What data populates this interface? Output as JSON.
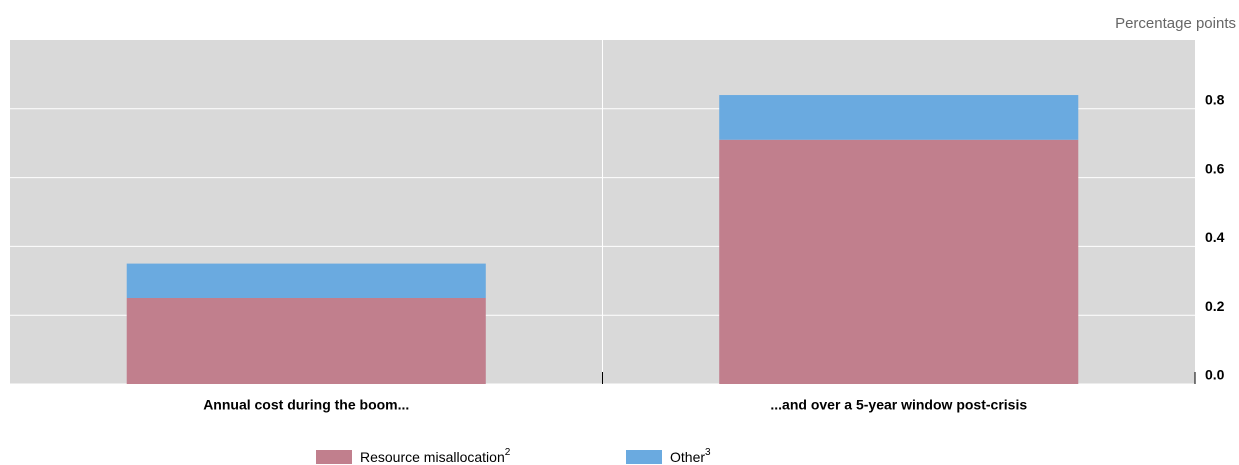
{
  "chart_data": {
    "type": "bar",
    "stacked": true,
    "unit_label": "Percentage points",
    "categories": [
      "Annual cost during the boom...",
      "...and over a 5-year window post-crisis"
    ],
    "series": [
      {
        "name": "Resource misallocation",
        "footnote": "2",
        "color": "#c17f8d",
        "values": [
          0.25,
          0.71
        ]
      },
      {
        "name": "Other",
        "footnote": "3",
        "color": "#6aaae0",
        "values": [
          0.1,
          0.13
        ]
      }
    ],
    "ylim": [
      0,
      1.0
    ],
    "yticks": [
      {
        "value": 0,
        "label": "0.0"
      },
      0.2,
      0.4,
      0.6,
      0.8
    ],
    "grid": true,
    "axis_side": "right",
    "legend": "bottom"
  }
}
